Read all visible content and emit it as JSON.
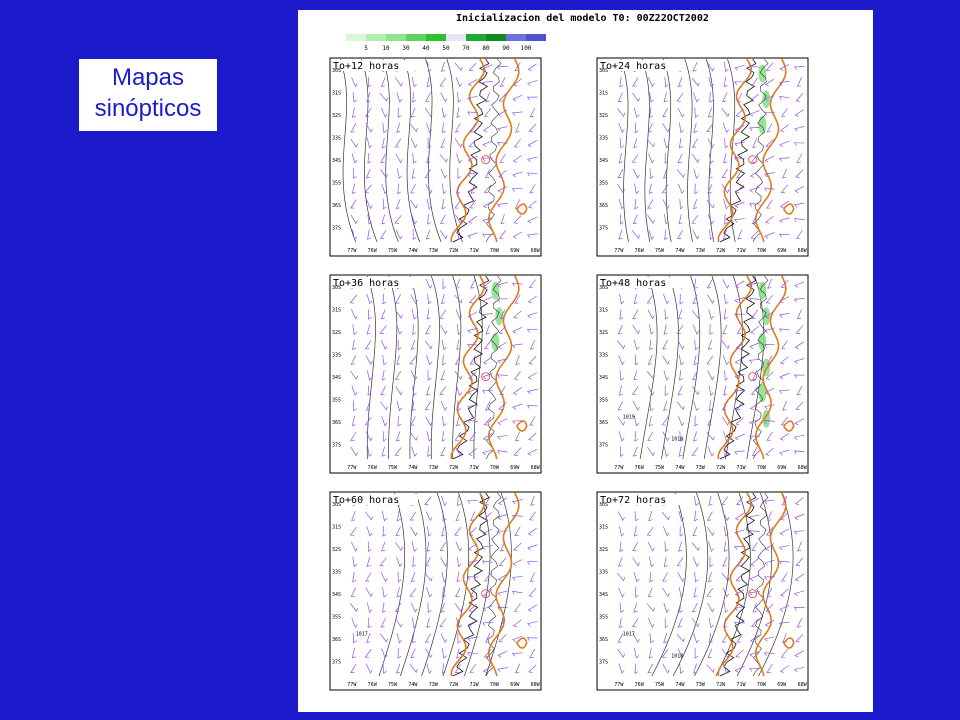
{
  "slide": {
    "label": "Mapas sinópticos"
  },
  "figure": {
    "title": "Inicializacion del modelo T0: 00Z22OCT2002",
    "colorbar": {
      "labels": [
        "5",
        "10",
        "30",
        "40",
        "50",
        "70",
        "80",
        "90",
        "100"
      ],
      "colors": [
        "#d8f7d8",
        "#b0eeb0",
        "#8ee38e",
        "#5fd35f",
        "#2fbf2f",
        "#e6e6fa",
        "#20a830",
        "#118c22",
        "#7070e0",
        "#5050d0"
      ]
    },
    "lat_labels": [
      "30S",
      "31S",
      "32S",
      "33S",
      "34S",
      "35S",
      "36S",
      "37S"
    ],
    "lon_labels": [
      "77W",
      "76W",
      "75W",
      "74W",
      "73W",
      "72W",
      "71W",
      "70W",
      "69W",
      "68W"
    ],
    "panels": [
      {
        "title": "To+12 horas",
        "contour_labels": []
      },
      {
        "title": "To+24 horas",
        "contour_labels": []
      },
      {
        "title": "To+36 horas",
        "contour_labels": []
      },
      {
        "title": "To+48 horas",
        "contour_labels": [
          "1019",
          "1018"
        ]
      },
      {
        "title": "To+60 horas",
        "contour_labels": [
          "1017"
        ]
      },
      {
        "title": "To+72 horas",
        "contour_labels": [
          "1017",
          "1018"
        ]
      }
    ]
  }
}
